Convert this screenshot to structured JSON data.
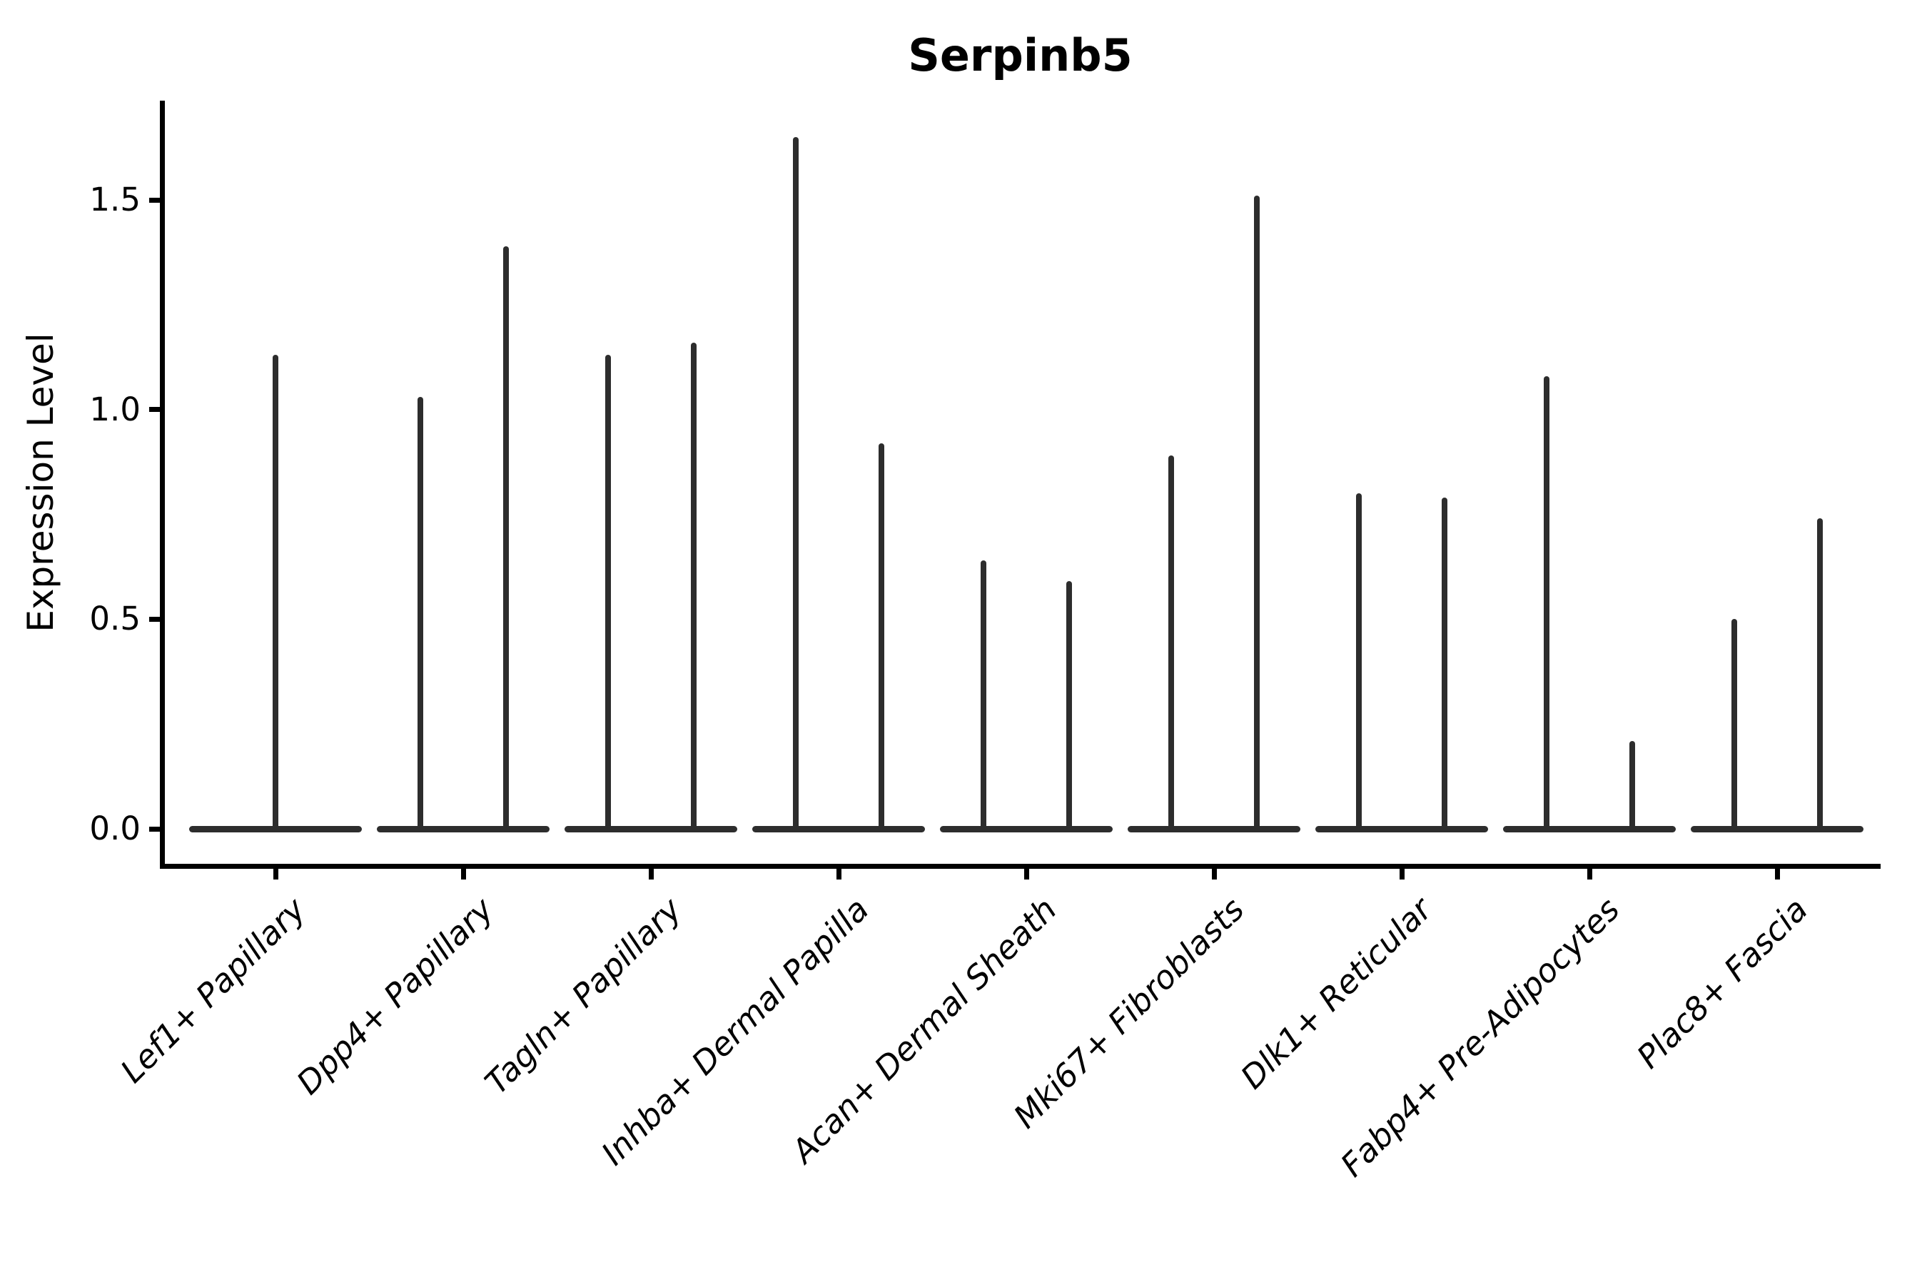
{
  "figure": {
    "title": "Serpinb5"
  },
  "chart_data": {
    "type": "violin",
    "title": "Serpinb5",
    "xlabel": "",
    "ylabel": "Expression Level",
    "ylim": [
      -0.08,
      1.74
    ],
    "yticks": [
      0.0,
      0.5,
      1.0,
      1.5
    ],
    "ytick_labels": [
      "0.0",
      "0.5",
      "1.0",
      "1.5"
    ],
    "grid": false,
    "legend": "none",
    "categories": [
      "Lef1+ Papillary",
      "Dpp4+ Papillary",
      "Tagln+ Papillary",
      "Inhba+ Dermal Papilla",
      "Acan+ Dermal Sheath",
      "Mki67+ Fibroblasts",
      "Dlk1+ Reticular",
      "Fabp4+ Pre-Adipocytes",
      "Plac8+ Fascia"
    ],
    "violins": [
      {
        "category": "Lef1+ Papillary",
        "spike_heights": [
          1.13
        ]
      },
      {
        "category": "Dpp4+ Papillary",
        "spike_heights": [
          1.03,
          1.39
        ]
      },
      {
        "category": "Tagln+ Papillary",
        "spike_heights": [
          1.13,
          1.16
        ]
      },
      {
        "category": "Inhba+ Dermal Papilla",
        "spike_heights": [
          1.65,
          0.92
        ]
      },
      {
        "category": "Acan+ Dermal Sheath",
        "spike_heights": [
          0.64,
          0.59
        ]
      },
      {
        "category": "Mki67+ Fibroblasts",
        "spike_heights": [
          0.89,
          1.51
        ]
      },
      {
        "category": "Dlk1+ Reticular",
        "spike_heights": [
          0.8,
          0.79
        ]
      },
      {
        "category": "Fabp4+ Pre-Adipocytes",
        "spike_heights": [
          1.08,
          0.21
        ]
      },
      {
        "category": "Plac8+ Fascia",
        "spike_heights": [
          0.5,
          0.74
        ]
      }
    ],
    "style_note": "Stick-style violin plot: each violin is collapsed to a thin horizontal baseline at expression 0 with narrow vertical density spikes reaching the maximum expression value; no fill, dark gray strokes, open top/right spines."
  }
}
